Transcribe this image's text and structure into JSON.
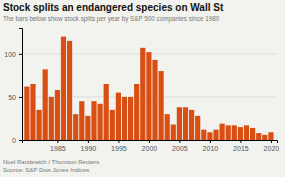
{
  "chart_data": {
    "type": "bar",
    "title": "Stock splits an endangered species on Wall St",
    "subtitle": "The bars below show stock splits per year by S&P 500 companies since 1980",
    "annotations": [
      "Noel Randewich / Thomson Reuters",
      "Source: S&P Dow Jones Indices"
    ],
    "x": [
      1980,
      1981,
      1982,
      1983,
      1984,
      1985,
      1986,
      1987,
      1988,
      1989,
      1990,
      1991,
      1992,
      1993,
      1994,
      1995,
      1996,
      1997,
      1998,
      1999,
      2000,
      2001,
      2002,
      2003,
      2004,
      2005,
      2006,
      2007,
      2008,
      2009,
      2010,
      2011,
      2012,
      2013,
      2014,
      2015,
      2016,
      2017,
      2018,
      2019,
      2020
    ],
    "values": [
      62,
      65,
      35,
      82,
      50,
      58,
      120,
      115,
      30,
      45,
      28,
      45,
      42,
      65,
      35,
      55,
      50,
      50,
      65,
      107,
      102,
      93,
      80,
      30,
      18,
      38,
      38,
      35,
      28,
      12,
      9,
      12,
      19,
      17,
      17,
      15,
      17,
      14,
      8,
      6,
      9
    ],
    "color": "#D94E12",
    "xlim": [
      1979.2,
      2021
    ],
    "xticks": [
      1985,
      1990,
      1995,
      2000,
      2005,
      2010,
      2015,
      2020
    ],
    "ylim": [
      0,
      130
    ],
    "yticks": [
      0,
      50,
      100
    ],
    "grid": true
  }
}
